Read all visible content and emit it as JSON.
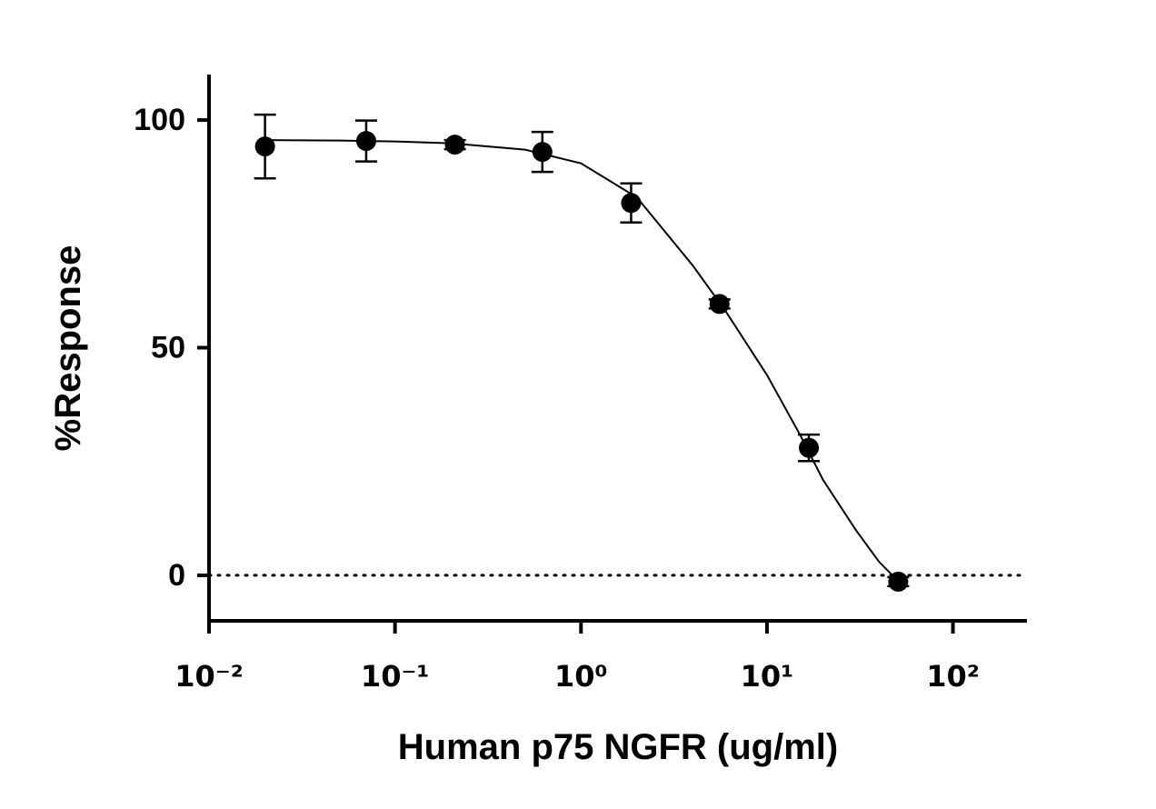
{
  "chart_data": {
    "type": "scatter",
    "x_label": "Human p75 NGFR (ug/ml)",
    "y_label": "%Response",
    "log_x": true,
    "xlim": [
      0.01,
      250
    ],
    "ylim": [
      -10,
      110
    ],
    "xticks": [
      {
        "value": 0.01,
        "label": "10⁻²"
      },
      {
        "value": 0.1,
        "label": "10⁻¹"
      },
      {
        "value": 1,
        "label": "10⁰"
      },
      {
        "value": 10,
        "label": "10¹"
      },
      {
        "value": 100,
        "label": "10²"
      }
    ],
    "yticks": [
      0,
      50,
      100
    ],
    "reference_line": {
      "value": 0,
      "style": "dotted"
    },
    "series": [
      {
        "type": "scatter",
        "color": "#000000",
        "x": [
          0.02,
          0.07,
          0.21,
          0.62,
          1.86,
          5.56,
          16.8,
          50.8
        ],
        "values": [
          94.2,
          95.4,
          94.6,
          93,
          81.8,
          59.6,
          28,
          -1.4
        ],
        "errors": [
          7,
          4.5,
          1,
          4.4,
          4.3,
          1,
          2.9,
          1
        ]
      },
      {
        "type": "line",
        "color": "#000000",
        "x": [
          0.02,
          0.05,
          0.1,
          0.2,
          0.5,
          1,
          2,
          4,
          6,
          10,
          15,
          20,
          30,
          40,
          50
        ],
        "values": [
          95.6,
          95.5,
          95.3,
          94.9,
          93.5,
          90.5,
          83,
          68,
          58,
          44,
          31,
          21,
          10,
          3,
          -1
        ]
      }
    ]
  }
}
